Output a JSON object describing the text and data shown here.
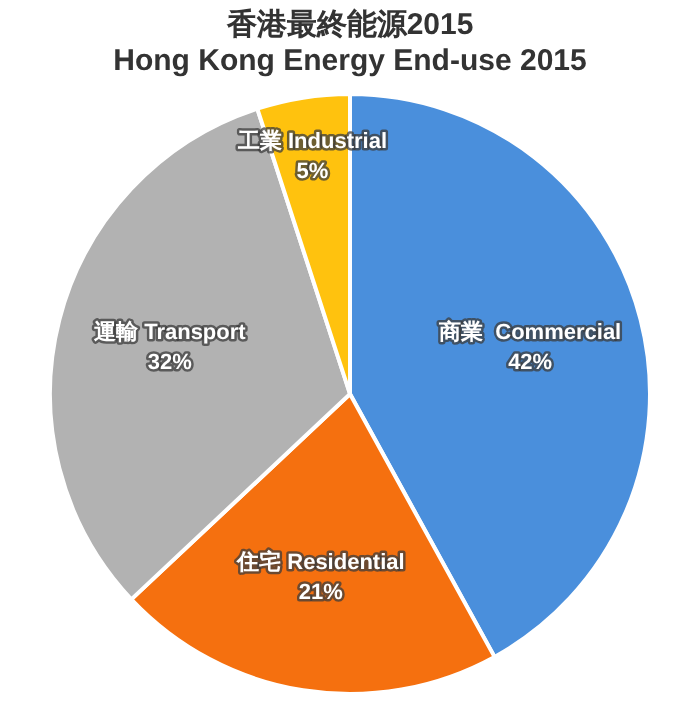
{
  "chart_data": {
    "type": "pie",
    "title": "香港最終能源2015",
    "subtitle": "Hong Kong Energy End-use 2015",
    "categories": [
      "商業  Commercial",
      "住宅 Residential",
      "運輸 Transport",
      "工業 Industrial"
    ],
    "values": [
      42,
      21,
      32,
      5
    ],
    "value_labels": [
      "42%",
      "21%",
      "32%",
      "5%"
    ],
    "colors": [
      "#4a8fdc",
      "#f5700f",
      "#b2b2b2",
      "#ffc20e"
    ],
    "legend": false
  }
}
